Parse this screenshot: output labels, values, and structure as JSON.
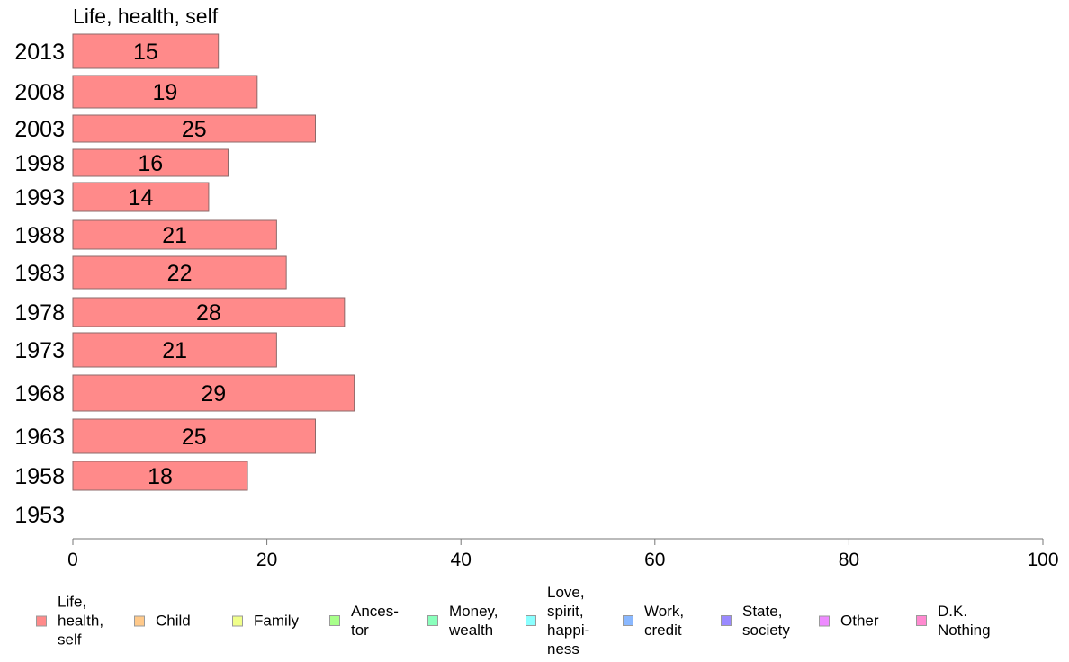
{
  "chart_data": {
    "type": "bar",
    "orientation": "horizontal",
    "title": "Life, health, self",
    "categories": [
      "2013",
      "2008",
      "2003",
      "1998",
      "1993",
      "1988",
      "1983",
      "1978",
      "1973",
      "1968",
      "1963",
      "1958",
      "1953"
    ],
    "series": [
      {
        "name": "Life, health, self",
        "color": "#ff8a8a",
        "values": [
          15,
          19,
          25,
          16,
          14,
          21,
          22,
          28,
          21,
          29,
          25,
          18,
          null
        ],
        "labels": [
          "15",
          "19",
          "25",
          "16",
          "14",
          "21",
          "22",
          "28",
          "21",
          "29",
          "25",
          "18",
          ""
        ]
      }
    ],
    "xlim": [
      0,
      100
    ],
    "xticks": [
      0,
      20,
      40,
      60,
      80,
      100
    ],
    "xtick_labels": [
      "0",
      "20",
      "40",
      "60",
      "80",
      "100"
    ],
    "grid": false,
    "legend_position": "bottom",
    "legend": [
      {
        "label": "Life,\nhealth,\nself",
        "color": "#ff8a8a"
      },
      {
        "label": "Child",
        "color": "#ffc98a"
      },
      {
        "label": "Family",
        "color": "#f0ff8a"
      },
      {
        "label": "Ances-\ntor",
        "color": "#a8ff8a"
      },
      {
        "label": "Money,\nwealth",
        "color": "#8affbc"
      },
      {
        "label": "Love,\nspirit,\nhappi-\nness",
        "color": "#8affff"
      },
      {
        "label": "Work,\ncredit",
        "color": "#8ab8ff"
      },
      {
        "label": "State,\nsociety",
        "color": "#9a8aff"
      },
      {
        "label": "Other",
        "color": "#ee8aff"
      },
      {
        "label": "D.K.\nNothing",
        "color": "#ff8ad0"
      }
    ]
  }
}
